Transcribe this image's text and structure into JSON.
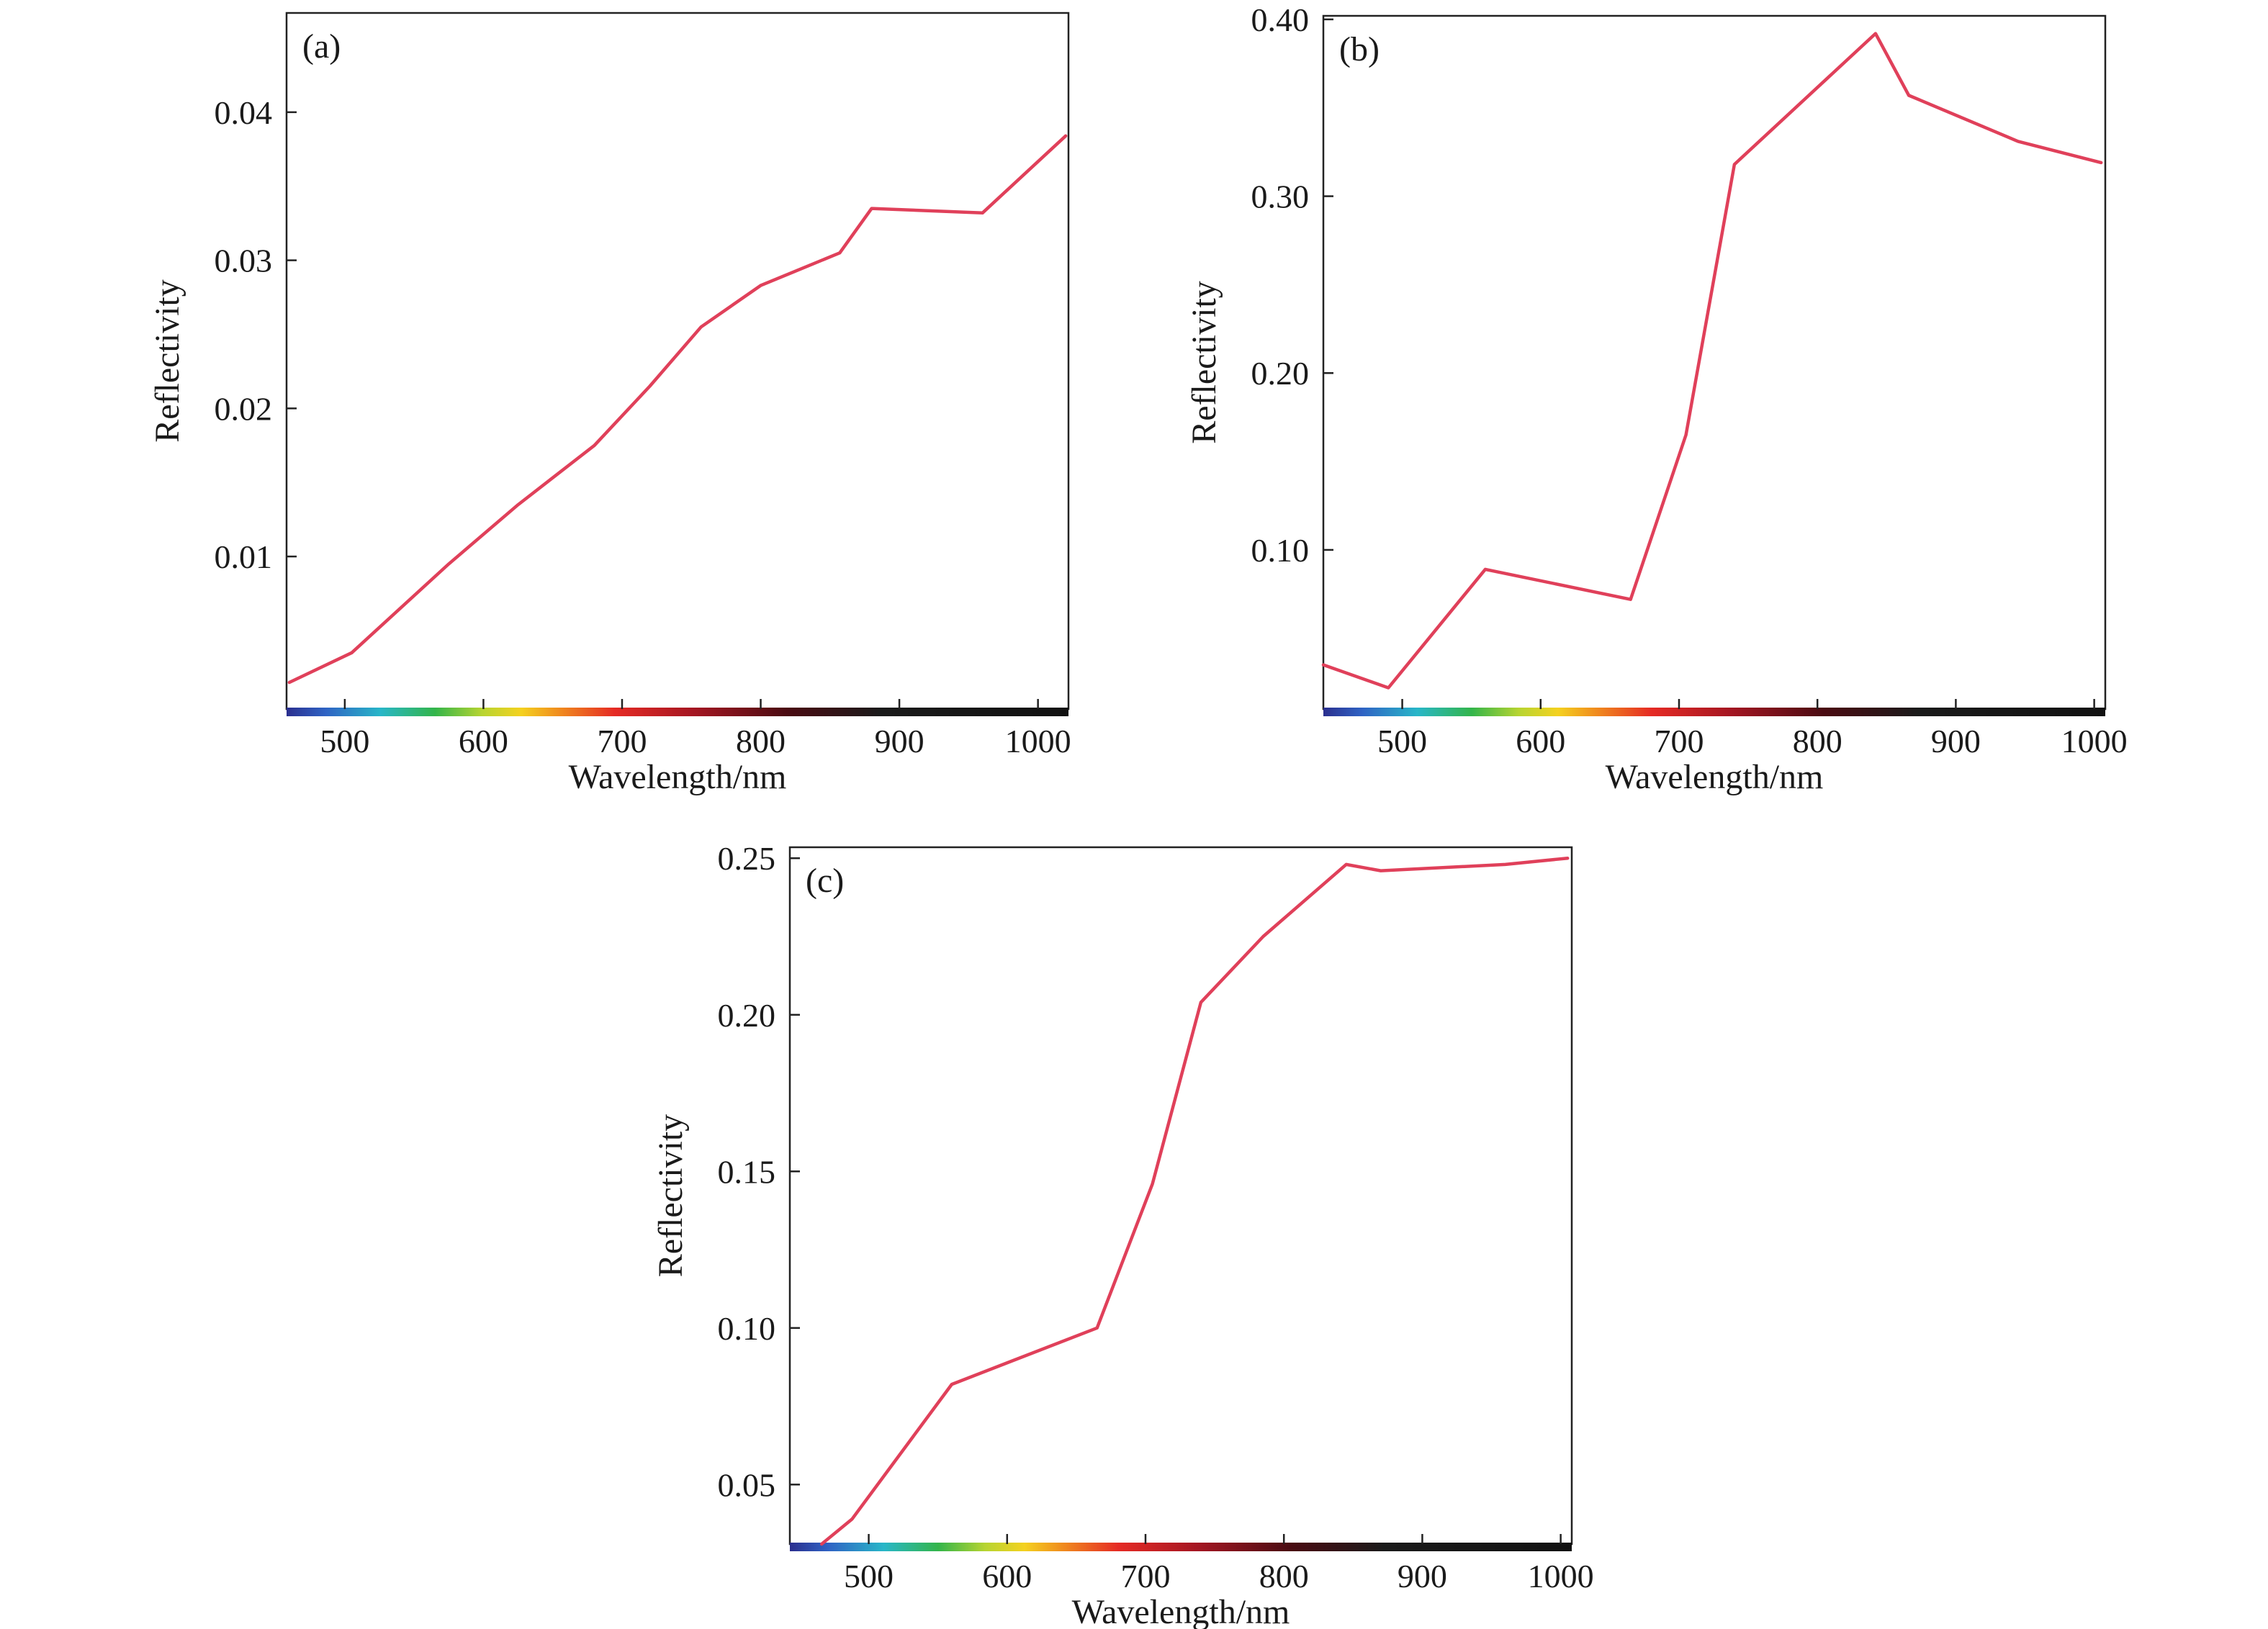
{
  "chart_data": [
    {
      "panel_label": "(a)",
      "type": "line",
      "xlabel": "Wavelength/nm",
      "ylabel": "Reflectivity",
      "xlim": [
        458,
        1022
      ],
      "ylim": [
        -0.0003,
        0.0467
      ],
      "xticks": [
        500,
        600,
        700,
        800,
        900,
        1000
      ],
      "yticks": [
        0.01,
        0.02,
        0.03,
        0.04
      ],
      "ytick_labels": [
        "0.01",
        "0.02",
        "0.03",
        "0.04"
      ],
      "grid": false,
      "series": [
        {
          "color": "#e0405a",
          "x": [
            460,
            505,
            575,
            625,
            680,
            720,
            757,
            800,
            857,
            880,
            960,
            1020
          ],
          "y": [
            0.0015,
            0.0035,
            0.0095,
            0.0135,
            0.0175,
            0.0215,
            0.0255,
            0.0283,
            0.0305,
            0.0335,
            0.0332,
            0.0384
          ]
        }
      ]
    },
    {
      "panel_label": "(b)",
      "type": "line",
      "xlabel": "Wavelength/nm",
      "ylabel": "Reflectivity",
      "xlim": [
        443,
        1008
      ],
      "ylim": [
        0.01,
        0.402
      ],
      "xticks": [
        500,
        600,
        700,
        800,
        900,
        1000
      ],
      "yticks": [
        0.1,
        0.2,
        0.3,
        0.4
      ],
      "ytick_labels": [
        "0.10",
        "0.20",
        "0.30",
        "0.40"
      ],
      "grid": false,
      "series": [
        {
          "color": "#e0405a",
          "x": [
            443,
            490,
            560,
            665,
            705,
            740,
            842,
            866,
            945,
            1005
          ],
          "y": [
            0.035,
            0.022,
            0.089,
            0.072,
            0.165,
            0.318,
            0.392,
            0.357,
            0.331,
            0.319
          ]
        }
      ]
    },
    {
      "panel_label": "(c)",
      "type": "line",
      "xlabel": "Wavelength/nm",
      "ylabel": "Reflectivity",
      "xlim": [
        443,
        1008
      ],
      "ylim": [
        0.031,
        0.2535
      ],
      "xticks": [
        500,
        600,
        700,
        800,
        900,
        1000
      ],
      "yticks": [
        0.05,
        0.1,
        0.15,
        0.2,
        0.25
      ],
      "ytick_labels": [
        "0.05",
        "0.10",
        "0.15",
        "0.20",
        "0.25"
      ],
      "grid": false,
      "series": [
        {
          "color": "#e0405a",
          "x": [
            466,
            488,
            560,
            665,
            705,
            740,
            785,
            845,
            870,
            960,
            1005
          ],
          "y": [
            0.031,
            0.039,
            0.082,
            0.1,
            0.146,
            0.204,
            0.225,
            0.248,
            0.246,
            0.248,
            0.25
          ]
        }
      ]
    }
  ]
}
